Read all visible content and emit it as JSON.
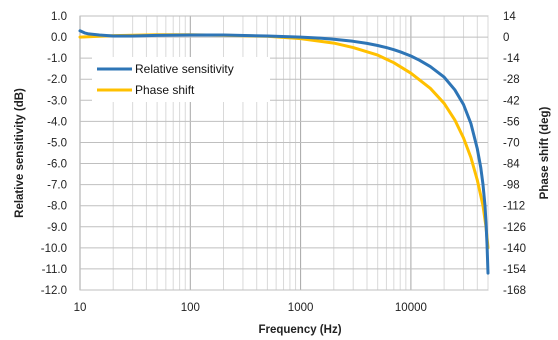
{
  "chart_data": {
    "type": "line",
    "xlabel": "Frequency (Hz)",
    "ylabel": "Relative sensitivity (dB)",
    "y2label": "Phase shift (deg)",
    "xscale": "log",
    "xlim": [
      10,
      50000
    ],
    "ylim": [
      -12,
      1
    ],
    "y2lim": [
      -168,
      14
    ],
    "x_ticks": [
      10,
      100,
      1000,
      10000
    ],
    "x_tick_labels": [
      "10",
      "100",
      "1000",
      "10000"
    ],
    "y_ticks": [
      1,
      0,
      -1,
      -2,
      -3,
      -4,
      -5,
      -6,
      -7,
      -8,
      -9,
      -10,
      -11,
      -12
    ],
    "y_tick_labels": [
      "1.0",
      "0.0",
      "-1.0",
      "-2.0",
      "-3.0",
      "-4.0",
      "-5.0",
      "-6.0",
      "-7.0",
      "-8.0",
      "-9.0",
      "-10.0",
      "-11.0",
      "-12.0"
    ],
    "y2_ticks": [
      14,
      0,
      -14,
      -28,
      -42,
      -56,
      -70,
      -84,
      -98,
      -112,
      -126,
      -140,
      -154,
      -168
    ],
    "y2_tick_labels": [
      "14",
      "0",
      "-14",
      "-28",
      "-42",
      "-56",
      "-70",
      "-84",
      "-98",
      "-112",
      "-126",
      "-140",
      "-154",
      "-168"
    ],
    "grid": true,
    "legend_position": "upper-left",
    "series": [
      {
        "name": "Relative sensitivity",
        "axis": "left",
        "color": "#2E75B6",
        "x": [
          10,
          11,
          12,
          15,
          20,
          30,
          50,
          100,
          200,
          500,
          1000,
          1500,
          2000,
          3000,
          4000,
          5000,
          6000,
          7000,
          8000,
          10000,
          12000,
          15000,
          20000,
          25000,
          30000,
          35000,
          40000,
          43000,
          45000,
          47000,
          48000,
          49000,
          50000
        ],
        "y": [
          0.3,
          0.2,
          0.15,
          0.1,
          0.05,
          0.05,
          0.08,
          0.1,
          0.1,
          0.05,
          0.0,
          -0.05,
          -0.1,
          -0.2,
          -0.3,
          -0.4,
          -0.5,
          -0.6,
          -0.7,
          -0.9,
          -1.1,
          -1.4,
          -1.9,
          -2.5,
          -3.2,
          -4.1,
          -5.3,
          -6.2,
          -7.0,
          -8.0,
          -8.8,
          -9.8,
          -11.2
        ]
      },
      {
        "name": "Phase shift",
        "axis": "right",
        "color": "#FFC000",
        "x": [
          10,
          20,
          50,
          100,
          200,
          500,
          1000,
          2000,
          3000,
          5000,
          7000,
          10000,
          15000,
          20000,
          25000,
          30000,
          35000,
          40000,
          45000,
          48000,
          50000
        ],
        "y": [
          0,
          1,
          1.5,
          1.5,
          1.2,
          0.5,
          -1,
          -4,
          -7,
          -12,
          -17,
          -24,
          -34,
          -44,
          -55,
          -67,
          -80,
          -95,
          -112,
          -126,
          -140
        ]
      }
    ]
  }
}
